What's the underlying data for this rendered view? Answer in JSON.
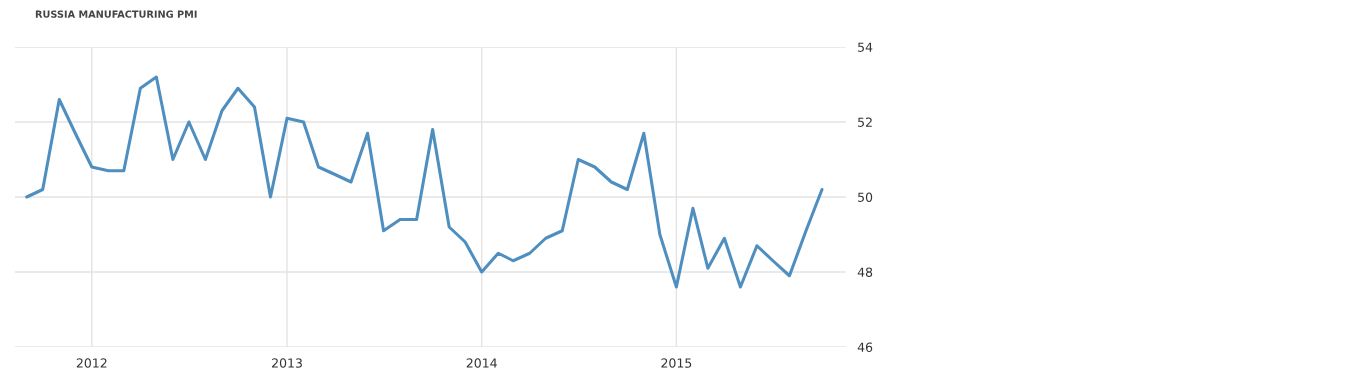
{
  "chart_data": {
    "type": "line",
    "title": "RUSSIA MANUFACTURING PMI",
    "x": [
      "2011-09",
      "2011-10",
      "2011-11",
      "2011-12",
      "2012-01",
      "2012-02",
      "2012-03",
      "2012-04",
      "2012-05",
      "2012-06",
      "2012-07",
      "2012-08",
      "2012-09",
      "2012-10",
      "2012-11",
      "2012-12",
      "2013-01",
      "2013-02",
      "2013-03",
      "2013-04",
      "2013-05",
      "2013-06",
      "2013-07",
      "2013-08",
      "2013-09",
      "2013-10",
      "2013-11",
      "2013-12",
      "2014-01",
      "2014-02",
      "2014-03",
      "2014-04",
      "2014-05",
      "2014-06",
      "2014-07",
      "2014-08",
      "2014-09",
      "2014-10",
      "2014-11",
      "2014-12",
      "2015-01",
      "2015-02",
      "2015-03",
      "2015-04",
      "2015-05",
      "2015-06",
      "2015-07",
      "2015-08",
      "2015-09",
      "2015-10"
    ],
    "series": [
      {
        "color": "#4f8fc0",
        "values": [
          50.0,
          50.2,
          52.6,
          51.7,
          50.8,
          50.7,
          50.7,
          52.9,
          53.2,
          51.0,
          52.0,
          51.0,
          52.3,
          52.9,
          52.4,
          50.0,
          52.1,
          52.0,
          50.8,
          50.6,
          50.4,
          51.7,
          49.1,
          49.4,
          49.4,
          51.8,
          49.2,
          48.8,
          48.0,
          48.5,
          48.3,
          48.5,
          48.9,
          49.1,
          51.0,
          50.8,
          50.4,
          50.2,
          51.7,
          49.0,
          47.6,
          49.7,
          48.1,
          48.9,
          47.6,
          48.7,
          48.3,
          47.9,
          49.1,
          50.2
        ]
      }
    ],
    "xlim": [
      "2011-08-10",
      "2015-11-15"
    ],
    "xticks": [
      {
        "value": "2012-01-01",
        "label": "2012"
      },
      {
        "value": "2013-01-01",
        "label": "2013"
      },
      {
        "value": "2014-01-01",
        "label": "2014"
      },
      {
        "value": "2015-01-01",
        "label": "2015"
      }
    ],
    "ylim": [
      46,
      54
    ],
    "yticks": [
      46,
      48,
      50,
      52,
      54
    ],
    "grid": true,
    "marker": "none",
    "line_style": "solid"
  }
}
